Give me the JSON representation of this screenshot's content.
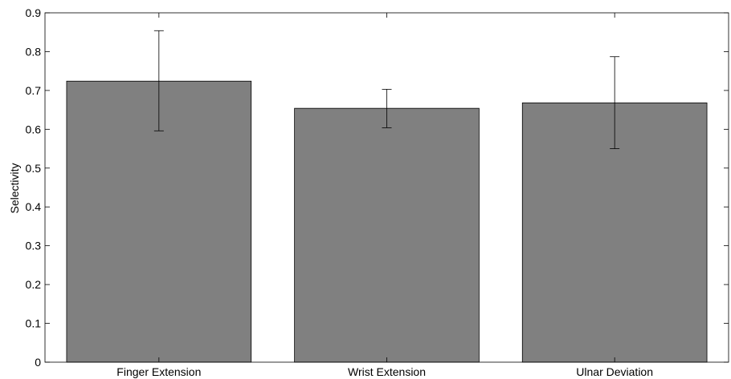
{
  "chart_data": {
    "type": "bar",
    "categories": [
      "Finger Extension",
      "Wrist Extension",
      "Ulnar Deviation"
    ],
    "values": [
      0.724,
      0.654,
      0.668
    ],
    "error_low": [
      0.596,
      0.604,
      0.55
    ],
    "error_high": [
      0.854,
      0.703,
      0.787
    ],
    "xlabel": "",
    "ylabel": "Selectivity",
    "ylim": [
      0,
      0.9
    ],
    "yticks": [
      0,
      0.1,
      0.2,
      0.3,
      0.4,
      0.5,
      0.6,
      0.7,
      0.8,
      0.9
    ],
    "ytick_labels": [
      "0",
      "0.1",
      "0.2",
      "0.3",
      "0.4",
      "0.5",
      "0.6",
      "0.7",
      "0.8",
      "0.9"
    ],
    "grid": false,
    "bar_color": "#808080",
    "edge_color": "#000000"
  }
}
